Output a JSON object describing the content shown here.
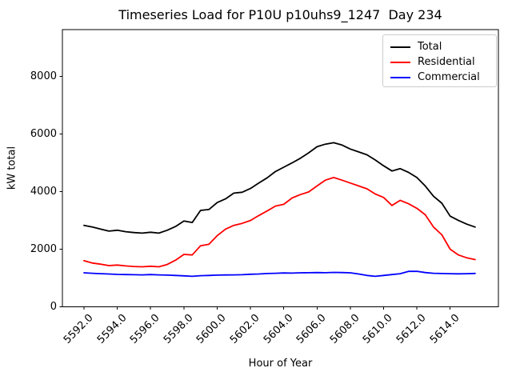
{
  "figure": {
    "background": "#ffffff",
    "axes_edge_color": "#000000",
    "legend_border_color": "#cccccc"
  },
  "chart_data": {
    "type": "line",
    "title": "Timeseries Load for P10U p10uhs9_1247  Day 234",
    "xlabel": "Hour of Year",
    "ylabel": "kW total",
    "grid": false,
    "legend_position": "upper right",
    "xlim": [
      5590.7,
      5616.9
    ],
    "ylim": [
      0,
      9630
    ],
    "xticks": {
      "values": [
        5592,
        5594,
        5596,
        5598,
        5600,
        5602,
        5604,
        5606,
        5608,
        5610,
        5612,
        5614
      ],
      "labels": [
        "5592.0",
        "5594.0",
        "5596.0",
        "5598.0",
        "5600.0",
        "5602.0",
        "5604.0",
        "5606.0",
        "5608.0",
        "5610.0",
        "5612.0",
        "5614.0"
      ],
      "rotation_deg": 45
    },
    "yticks": {
      "values": [
        0,
        2000,
        4000,
        6000,
        8000
      ],
      "labels": [
        "0",
        "2000",
        "4000",
        "6000",
        "8000"
      ]
    },
    "x": [
      5592.0,
      5592.5,
      5593.0,
      5593.5,
      5594.0,
      5594.5,
      5595.0,
      5595.5,
      5596.0,
      5596.5,
      5597.0,
      5597.5,
      5598.0,
      5598.5,
      5599.0,
      5599.5,
      5600.0,
      5600.5,
      5601.0,
      5601.5,
      5602.0,
      5602.5,
      5603.0,
      5603.5,
      5604.0,
      5604.5,
      5605.0,
      5605.5,
      5606.0,
      5606.5,
      5607.0,
      5607.5,
      5608.0,
      5608.5,
      5609.0,
      5609.5,
      5610.0,
      5610.5,
      5611.0,
      5611.5,
      5612.0,
      5612.5,
      5613.0,
      5613.5,
      5614.0,
      5614.5,
      5615.0,
      5615.5
    ],
    "series": [
      {
        "name": "Total",
        "color": "#000000",
        "values": [
          2830,
          2770,
          2700,
          2630,
          2660,
          2610,
          2580,
          2560,
          2590,
          2560,
          2660,
          2790,
          2980,
          2930,
          3350,
          3380,
          3620,
          3750,
          3950,
          3980,
          4110,
          4300,
          4480,
          4700,
          4850,
          5000,
          5160,
          5350,
          5560,
          5650,
          5700,
          5620,
          5480,
          5380,
          5280,
          5100,
          4900,
          4720,
          4800,
          4670,
          4490,
          4200,
          3840,
          3600,
          3150,
          3000,
          2870,
          2770
        ]
      },
      {
        "name": "Residential",
        "color": "#ff0000",
        "values": [
          1600,
          1520,
          1480,
          1430,
          1450,
          1420,
          1400,
          1390,
          1410,
          1390,
          1470,
          1620,
          1820,
          1800,
          2120,
          2170,
          2470,
          2700,
          2830,
          2900,
          3000,
          3170,
          3330,
          3500,
          3560,
          3780,
          3900,
          3990,
          4200,
          4400,
          4490,
          4400,
          4300,
          4200,
          4100,
          3920,
          3800,
          3520,
          3700,
          3580,
          3420,
          3200,
          2770,
          2500,
          2000,
          1800,
          1700,
          1640
        ]
      },
      {
        "name": "Commercial",
        "color": "#0000ff",
        "values": [
          1180,
          1165,
          1150,
          1140,
          1125,
          1120,
          1115,
          1110,
          1120,
          1110,
          1100,
          1090,
          1075,
          1060,
          1080,
          1090,
          1100,
          1105,
          1110,
          1115,
          1130,
          1140,
          1155,
          1165,
          1175,
          1170,
          1180,
          1185,
          1190,
          1185,
          1195,
          1190,
          1180,
          1140,
          1090,
          1060,
          1090,
          1120,
          1150,
          1230,
          1235,
          1190,
          1165,
          1155,
          1150,
          1145,
          1150,
          1160
        ]
      }
    ]
  }
}
